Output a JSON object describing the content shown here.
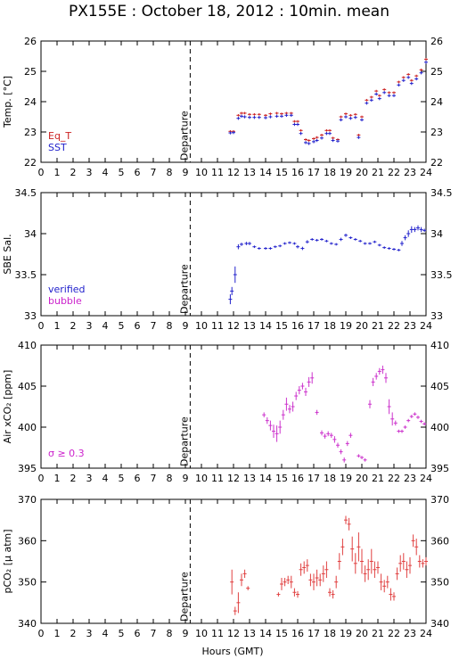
{
  "title": "PX155E : October 18, 2012 : 10min. mean",
  "xlabel": "Hours (GMT)",
  "departure_label": "Departure",
  "departure_hour": 9.3,
  "x_ticks": [
    "0",
    "1",
    "2",
    "3",
    "4",
    "5",
    "6",
    "7",
    "8",
    "9",
    "10",
    "11",
    "12",
    "13",
    "14",
    "15",
    "16",
    "17",
    "18",
    "19",
    "20",
    "21",
    "22",
    "23",
    "24"
  ],
  "colors": {
    "eq_t": "#cc2222",
    "sst": "#2222cc",
    "verified": "#2222cc",
    "bubble": "#cc22cc",
    "air": "#cc33cc",
    "pco2": "#e04040"
  },
  "chart_data": [
    {
      "type": "scatter",
      "ylabel": "Temp. [°C]",
      "ylim": [
        22,
        26
      ],
      "y_ticks": [
        "22",
        "23",
        "24",
        "25",
        "26"
      ],
      "legend": [
        {
          "name": "Eq_T",
          "color": "#cc2222"
        },
        {
          "name": "SST",
          "color": "#2222cc"
        }
      ],
      "series": [
        {
          "name": "Eq_T",
          "color": "#cc2222",
          "err": 0.04,
          "x": [
            11.8,
            12.0,
            12.3,
            12.5,
            12.7,
            13.0,
            13.3,
            13.6,
            14.0,
            14.3,
            14.7,
            15.0,
            15.3,
            15.6,
            15.8,
            16.0,
            16.2,
            16.5,
            16.7,
            17.0,
            17.2,
            17.5,
            17.8,
            18.0,
            18.2,
            18.5,
            18.7,
            19.0,
            19.3,
            19.6,
            19.8,
            20.0,
            20.3,
            20.6,
            20.9,
            21.1,
            21.4,
            21.7,
            22.0,
            22.3,
            22.6,
            22.9,
            23.1,
            23.4,
            23.7,
            24.0
          ],
          "y": [
            23.02,
            23.02,
            23.55,
            23.62,
            23.62,
            23.58,
            23.58,
            23.58,
            23.55,
            23.6,
            23.62,
            23.6,
            23.62,
            23.62,
            23.35,
            23.35,
            23.05,
            22.75,
            22.72,
            22.78,
            22.82,
            22.9,
            23.05,
            23.05,
            22.8,
            22.75,
            23.5,
            23.6,
            23.55,
            23.58,
            22.9,
            23.5,
            24.05,
            24.15,
            24.35,
            24.2,
            24.4,
            24.3,
            24.3,
            24.65,
            24.8,
            24.9,
            24.7,
            24.85,
            25.05,
            25.4
          ]
        },
        {
          "name": "SST",
          "color": "#2222cc",
          "err": 0.05,
          "x": [
            11.8,
            12.0,
            12.3,
            12.5,
            12.7,
            13.0,
            13.3,
            13.6,
            14.0,
            14.3,
            14.7,
            15.0,
            15.3,
            15.6,
            15.8,
            16.0,
            16.2,
            16.5,
            16.7,
            17.0,
            17.2,
            17.5,
            17.8,
            18.0,
            18.2,
            18.5,
            18.7,
            19.0,
            19.3,
            19.6,
            19.8,
            20.0,
            20.3,
            20.6,
            20.9,
            21.1,
            21.4,
            21.7,
            22.0,
            22.3,
            22.6,
            22.9,
            23.1,
            23.4,
            23.7,
            24.0
          ],
          "y": [
            22.97,
            22.98,
            23.45,
            23.52,
            23.5,
            23.48,
            23.48,
            23.48,
            23.47,
            23.5,
            23.52,
            23.52,
            23.55,
            23.55,
            23.25,
            23.25,
            22.95,
            22.65,
            22.62,
            22.68,
            22.72,
            22.8,
            22.95,
            22.95,
            22.72,
            22.7,
            23.4,
            23.5,
            23.45,
            23.48,
            22.82,
            23.4,
            23.95,
            24.05,
            24.25,
            24.1,
            24.3,
            24.2,
            24.2,
            24.55,
            24.7,
            24.8,
            24.6,
            24.75,
            24.95,
            25.3
          ]
        }
      ]
    },
    {
      "type": "scatter",
      "ylabel": "SBE Sal.",
      "ylim": [
        33,
        34.5
      ],
      "y_ticks": [
        "33",
        "33.5",
        "34",
        "34.5"
      ],
      "legend": [
        {
          "name": "verified",
          "color": "#2222cc"
        },
        {
          "name": "bubble",
          "color": "#cc22cc"
        }
      ],
      "series": [
        {
          "name": "verified",
          "color": "#2222cc",
          "err": 0.015,
          "x": [
            11.8,
            11.9,
            12.1,
            12.3,
            12.5,
            12.8,
            13.0,
            13.3,
            13.6,
            14.0,
            14.3,
            14.6,
            14.9,
            15.2,
            15.5,
            15.8,
            16.0,
            16.3,
            16.6,
            16.9,
            17.2,
            17.5,
            17.8,
            18.1,
            18.4,
            18.7,
            19.0,
            19.3,
            19.6,
            19.9,
            20.2,
            20.5,
            20.8,
            21.1,
            21.4,
            21.7,
            22.0,
            22.3,
            22.5,
            22.7,
            22.9,
            23.1,
            23.3,
            23.5,
            23.7,
            23.9
          ],
          "y": [
            33.2,
            33.3,
            33.5,
            33.84,
            33.87,
            33.88,
            33.88,
            33.84,
            33.82,
            33.82,
            33.82,
            33.84,
            33.85,
            33.88,
            33.89,
            33.88,
            33.84,
            33.82,
            33.9,
            33.93,
            33.92,
            33.93,
            33.91,
            33.88,
            33.87,
            33.93,
            33.98,
            33.95,
            33.93,
            33.91,
            33.88,
            33.88,
            33.9,
            33.86,
            33.83,
            33.82,
            33.81,
            33.8,
            33.88,
            33.95,
            34.0,
            34.05,
            34.05,
            34.07,
            34.05,
            34.04
          ],
          "errs": [
            0.06,
            0.05,
            0.1,
            0.03,
            0.02,
            0.02,
            0.02,
            0.015,
            0.015,
            0.015,
            0.015,
            0.015,
            0.015,
            0.015,
            0.015,
            0.015,
            0.02,
            0.02,
            0.02,
            0.015,
            0.015,
            0.015,
            0.015,
            0.015,
            0.015,
            0.02,
            0.02,
            0.015,
            0.015,
            0.015,
            0.015,
            0.015,
            0.015,
            0.015,
            0.015,
            0.015,
            0.015,
            0.015,
            0.03,
            0.03,
            0.04,
            0.04,
            0.03,
            0.03,
            0.03,
            0.02
          ]
        }
      ]
    },
    {
      "type": "scatter",
      "ylabel": "Air xCO₂ [ppm]",
      "ylim": [
        395,
        410
      ],
      "y_ticks": [
        "395",
        "400",
        "405",
        "410"
      ],
      "legend": [
        {
          "name": "σ ≥ 0.3",
          "color": "#cc22cc"
        }
      ],
      "series": [
        {
          "name": "",
          "color": "#cc33cc",
          "x": [
            13.9,
            14.1,
            14.3,
            14.5,
            14.7,
            14.9,
            15.1,
            15.3,
            15.5,
            15.7,
            15.9,
            16.1,
            16.3,
            16.5,
            16.7,
            16.9,
            17.2,
            17.5,
            17.7,
            17.9,
            18.1,
            18.3,
            18.5,
            18.7,
            18.9,
            19.1,
            19.3,
            19.8,
            20.0,
            20.2,
            20.5,
            20.7,
            20.9,
            21.1,
            21.3,
            21.5,
            21.7,
            21.9,
            22.1,
            22.3,
            22.5,
            22.7,
            22.9,
            23.1,
            23.3,
            23.5,
            23.7,
            23.9
          ],
          "y": [
            401.5,
            400.8,
            400.2,
            399.5,
            399.2,
            400.0,
            401.5,
            402.8,
            402.2,
            402.5,
            403.8,
            404.5,
            405.0,
            404.3,
            405.5,
            406.0,
            401.8,
            399.3,
            398.9,
            399.2,
            399.0,
            398.5,
            397.8,
            397.0,
            396.0,
            398.0,
            399.0,
            396.5,
            396.3,
            396.0,
            402.8,
            405.5,
            406.2,
            406.8,
            407.0,
            406.0,
            402.5,
            401.0,
            400.5,
            399.5,
            399.5,
            400.0,
            400.8,
            401.3,
            401.6,
            401.2,
            400.7,
            400.4
          ],
          "errs": [
            0.3,
            0.4,
            0.6,
            0.8,
            1.0,
            0.8,
            0.6,
            0.8,
            0.5,
            0.6,
            0.5,
            0.5,
            0.4,
            0.5,
            0.6,
            0.7,
            0.3,
            0.3,
            0.3,
            0.3,
            0.3,
            0.4,
            0.3,
            0.3,
            0.3,
            0.3,
            0.3,
            0.2,
            0.2,
            0.2,
            0.5,
            0.5,
            0.4,
            0.4,
            0.5,
            0.6,
            0.9,
            0.8,
            0.3,
            0.2,
            0.2,
            0.2,
            0.2,
            0.2,
            0.2,
            0.2,
            0.2,
            0.2
          ]
        }
      ]
    },
    {
      "type": "scatter",
      "ylabel": "pCO₂ [µ atm]",
      "ylim": [
        340,
        370
      ],
      "y_ticks": [
        "340",
        "350",
        "360",
        "370"
      ],
      "legend": [],
      "series": [
        {
          "name": "",
          "color": "#e04040",
          "x": [
            11.9,
            12.1,
            12.3,
            12.5,
            12.7,
            12.9,
            14.8,
            15.0,
            15.2,
            15.4,
            15.6,
            15.8,
            16.0,
            16.2,
            16.4,
            16.6,
            16.8,
            17.0,
            17.2,
            17.4,
            17.6,
            17.8,
            18.0,
            18.2,
            18.4,
            18.6,
            18.8,
            19.0,
            19.2,
            19.4,
            19.6,
            19.8,
            20.0,
            20.2,
            20.4,
            20.6,
            20.8,
            21.0,
            21.2,
            21.4,
            21.6,
            21.8,
            22.0,
            22.2,
            22.4,
            22.6,
            22.8,
            23.0,
            23.2,
            23.4,
            23.6,
            23.8,
            24.0
          ],
          "y": [
            350.0,
            343.0,
            345.0,
            350.5,
            352.0,
            348.5,
            347.0,
            349.5,
            350.0,
            350.5,
            350.0,
            347.5,
            347.0,
            353.0,
            353.5,
            354.0,
            350.5,
            350.0,
            351.0,
            350.5,
            352.0,
            353.0,
            347.5,
            347.0,
            350.0,
            355.0,
            358.5,
            365.0,
            364.0,
            358.0,
            354.5,
            358.5,
            355.0,
            352.0,
            353.0,
            355.0,
            353.0,
            353.5,
            350.0,
            349.0,
            350.0,
            347.0,
            346.5,
            352.0,
            354.5,
            355.0,
            353.0,
            354.0,
            360.0,
            358.5,
            355.0,
            354.5,
            355.0
          ],
          "errs": [
            3.0,
            1.0,
            2.5,
            1.5,
            1.0,
            0.5,
            0.5,
            1.5,
            1.0,
            1.0,
            1.5,
            1.0,
            0.8,
            1.5,
            1.5,
            1.5,
            1.5,
            2.0,
            2.0,
            1.5,
            2.0,
            2.0,
            1.0,
            1.0,
            1.5,
            2.0,
            2.0,
            1.0,
            1.5,
            3.0,
            2.5,
            3.5,
            3.0,
            2.0,
            2.5,
            3.0,
            2.0,
            1.5,
            2.0,
            1.5,
            1.5,
            1.5,
            1.0,
            1.5,
            2.0,
            2.0,
            2.0,
            2.0,
            1.5,
            2.0,
            1.5,
            1.0,
            1.0
          ]
        }
      ]
    }
  ]
}
